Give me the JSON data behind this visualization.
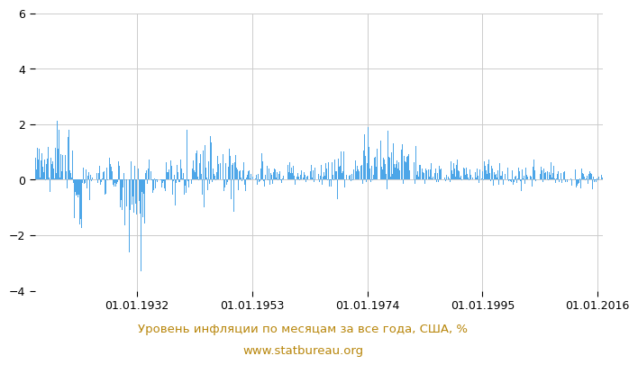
{
  "title": "Уровень инфляции по месяцам за все года, США, %",
  "subtitle": "www.statbureau.org",
  "title_color": "#b8860b",
  "bar_color": "#4da6e8",
  "background_color": "#ffffff",
  "ylim": [
    -4,
    6
  ],
  "yticks": [
    -4,
    -2,
    0,
    2,
    4,
    6
  ],
  "xtick_labels": [
    "01.01.1932",
    "01.01.1953",
    "01.01.1974",
    "01.01.1995",
    "01.01.2016"
  ],
  "xtick_years": [
    1932,
    1953,
    1974,
    1995,
    2016
  ],
  "start_year": 1913,
  "end_year": 2017,
  "grid_color": "#cccccc",
  "title_fontsize": 9.5,
  "tick_fontsize": 9
}
